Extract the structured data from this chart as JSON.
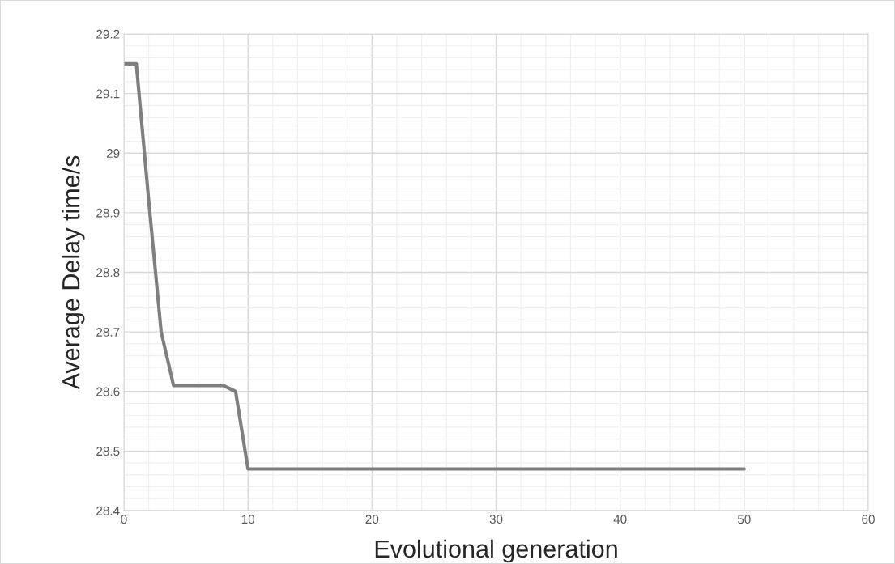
{
  "chart_data": {
    "type": "line",
    "xlabel": "Evolutional generation",
    "ylabel": "Average Delay time/s",
    "x": [
      0,
      1,
      2,
      3,
      4,
      5,
      6,
      7,
      8,
      9,
      10,
      11,
      12,
      13,
      14,
      15,
      16,
      17,
      18,
      19,
      20,
      21,
      22,
      23,
      24,
      25,
      26,
      27,
      28,
      29,
      30,
      31,
      32,
      33,
      34,
      35,
      36,
      37,
      38,
      39,
      40,
      41,
      42,
      43,
      44,
      45,
      46,
      47,
      48,
      49,
      50
    ],
    "series": [
      {
        "color": "#7f7f7f",
        "values": [
          29.15,
          29.15,
          28.92,
          28.7,
          28.61,
          28.61,
          28.61,
          28.61,
          28.61,
          28.6,
          28.47,
          28.47,
          28.47,
          28.47,
          28.47,
          28.47,
          28.47,
          28.47,
          28.47,
          28.47,
          28.47,
          28.47,
          28.47,
          28.47,
          28.47,
          28.47,
          28.47,
          28.47,
          28.47,
          28.47,
          28.47,
          28.47,
          28.47,
          28.47,
          28.47,
          28.47,
          28.47,
          28.47,
          28.47,
          28.47,
          28.47,
          28.47,
          28.47,
          28.47,
          28.47,
          28.47,
          28.47,
          28.47,
          28.47,
          28.47,
          28.47
        ]
      }
    ],
    "xlim": [
      0,
      60
    ],
    "xticks": [
      0,
      10,
      20,
      30,
      40,
      50,
      60
    ],
    "ylim": [
      28.4,
      29.2
    ],
    "yticks": [
      28.4,
      28.5,
      28.6,
      28.7,
      28.8,
      28.9,
      {
        "value": 29,
        "label": "29"
      },
      29.1,
      29.2
    ],
    "grid": true,
    "marker": "none",
    "line_style": "solid"
  }
}
